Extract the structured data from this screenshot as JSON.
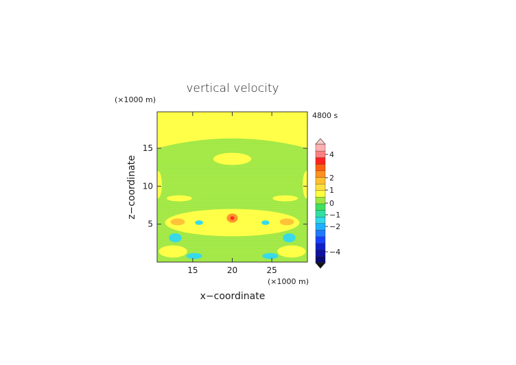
{
  "chart_data": {
    "type": "heatmap",
    "title": "vertical velocity",
    "time_label": "4800 s",
    "xlabel": "x−coordinate",
    "ylabel": "z−coordinate",
    "x_unit": "(×1000 m)",
    "y_unit": "(×1000 m)",
    "x_range": [
      10.5,
      29.5
    ],
    "y_range": [
      0,
      19.8
    ],
    "x_ticks": [
      15,
      20,
      25
    ],
    "y_ticks": [
      5,
      10,
      15
    ],
    "colorbar_tick_labels": [
      "4",
      "2",
      "1",
      "0",
      "−1",
      "−2",
      "−4"
    ],
    "colorbar_colors": [
      "#0a0a70",
      "#1010a0",
      "#1020c8",
      "#1840ff",
      "#2078ff",
      "#20b0ff",
      "#30d8e8",
      "#30e0a0",
      "#40e060",
      "#a0e840",
      "#ffff40",
      "#ffe040",
      "#ffc030",
      "#ff9020",
      "#ff6010",
      "#ff2020",
      "#ff8080",
      "#ffb0b0"
    ],
    "regions": [
      {
        "kind": "rect",
        "label": "weak downdraft (0 to -0.5)",
        "x": [
          10.5,
          29.5
        ],
        "z": [
          0,
          15
        ],
        "color": "#a0e840"
      },
      {
        "kind": "ellipse",
        "label": "upper updraft",
        "center": [
          20,
          13.6
        ],
        "radii": [
          2.4,
          0.8
        ],
        "color": "#ffff40"
      },
      {
        "kind": "ellipse",
        "label": "left edge updraft",
        "center": [
          10.6,
          10.2
        ],
        "radii": [
          0.5,
          1.8
        ],
        "color": "#ffff40"
      },
      {
        "kind": "ellipse",
        "label": "right edge updraft",
        "center": [
          29.4,
          10.2
        ],
        "radii": [
          0.5,
          1.8
        ],
        "color": "#ffff40"
      },
      {
        "kind": "ellipse",
        "label": "lower updraft band",
        "center": [
          20,
          5.2
        ],
        "radii": [
          8.5,
          1.8
        ],
        "color": "#ffff40"
      },
      {
        "kind": "ellipse",
        "label": "lower updraft left",
        "center": [
          13.3,
          8.4
        ],
        "radii": [
          1.6,
          0.4
        ],
        "color": "#ffff40"
      },
      {
        "kind": "ellipse",
        "label": "lower updraft right",
        "center": [
          26.7,
          8.4
        ],
        "radii": [
          1.6,
          0.4
        ],
        "color": "#ffff40"
      },
      {
        "kind": "ellipse",
        "label": "surface updraft left",
        "center": [
          12.5,
          1.4
        ],
        "radii": [
          1.8,
          0.8
        ],
        "color": "#ffff40"
      },
      {
        "kind": "ellipse",
        "label": "surface updraft right",
        "center": [
          27.5,
          1.4
        ],
        "radii": [
          1.8,
          0.8
        ],
        "color": "#ffff40"
      },
      {
        "kind": "ellipse",
        "label": "core updraft",
        "center": [
          20,
          5.8
        ],
        "radii": [
          0.7,
          0.6
        ],
        "color": "#ff9020"
      },
      {
        "kind": "ellipse",
        "label": "core updraft max",
        "center": [
          20,
          5.8
        ],
        "radii": [
          0.25,
          0.25
        ],
        "color": "#ff2020"
      },
      {
        "kind": "ellipse",
        "label": "left updraft max",
        "center": [
          13.1,
          5.3
        ],
        "radii": [
          0.9,
          0.45
        ],
        "color": "#ffc030"
      },
      {
        "kind": "ellipse",
        "label": "right updraft max",
        "center": [
          26.9,
          5.3
        ],
        "radii": [
          0.9,
          0.45
        ],
        "color": "#ffc030"
      },
      {
        "kind": "ellipse",
        "label": "left downdraft",
        "center": [
          12.8,
          3.2
        ],
        "radii": [
          0.8,
          0.6
        ],
        "color": "#30d8e8"
      },
      {
        "kind": "ellipse",
        "label": "right downdraft",
        "center": [
          27.2,
          3.2
        ],
        "radii": [
          0.8,
          0.6
        ],
        "color": "#30d8e8"
      },
      {
        "kind": "ellipse",
        "label": "left downdraft 2",
        "center": [
          15.8,
          5.2
        ],
        "radii": [
          0.5,
          0.3
        ],
        "color": "#30d8e8"
      },
      {
        "kind": "ellipse",
        "label": "right downdraft 2",
        "center": [
          24.2,
          5.2
        ],
        "radii": [
          0.5,
          0.3
        ],
        "color": "#30d8e8"
      },
      {
        "kind": "ellipse",
        "label": "surface downdraft left",
        "center": [
          15.2,
          0.8
        ],
        "radii": [
          1.0,
          0.4
        ],
        "color": "#30d8e8"
      },
      {
        "kind": "ellipse",
        "label": "surface downdraft right",
        "center": [
          24.8,
          0.8
        ],
        "radii": [
          1.0,
          0.4
        ],
        "color": "#30d8e8"
      }
    ]
  }
}
